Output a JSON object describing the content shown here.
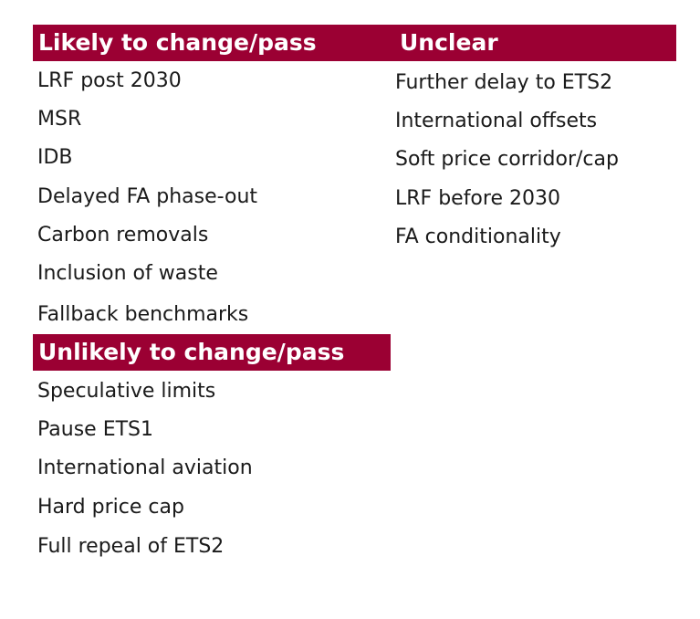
{
  "likely": {
    "title": "Likely to change/pass",
    "items": [
      "LRF post 2030",
      "MSR",
      "IDB",
      "Delayed FA phase-out",
      "Carbon removals",
      "Inclusion of waste",
      "Fallback benchmarks"
    ]
  },
  "unclear": {
    "title": "Unclear",
    "items": [
      "Further delay to ETS2",
      "International offsets",
      "Soft price corridor/cap",
      "LRF before 2030",
      "FA conditionality"
    ]
  },
  "unlikely": {
    "title": "Unlikely to change/pass",
    "items": [
      "Speculative limits",
      "Pause ETS1",
      "International aviation",
      "Hard price cap",
      "Full repeal of ETS2"
    ]
  },
  "colors": {
    "header_background": "#9b0033",
    "header_text": "#ffffff",
    "item_text": "#1a1a1a"
  }
}
